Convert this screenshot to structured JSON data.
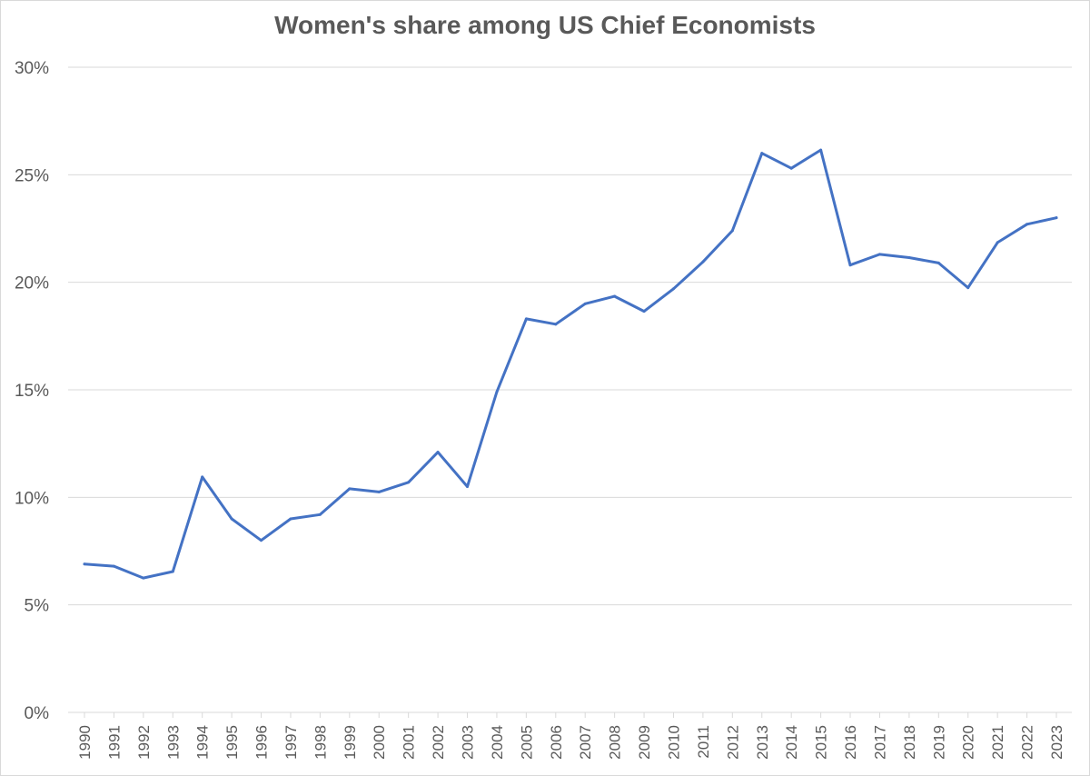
{
  "chart_data": {
    "type": "line",
    "title": "Women's share among US Chief Economists",
    "xlabel": "",
    "ylabel": "",
    "ylim": [
      0,
      30
    ],
    "yticks": [
      "0%",
      "5%",
      "10%",
      "15%",
      "20%",
      "25%",
      "30%"
    ],
    "ytick_values": [
      0,
      5,
      10,
      15,
      20,
      25,
      30
    ],
    "grid": true,
    "legend": "none",
    "categories": [
      "1990",
      "1991",
      "1992",
      "1993",
      "1994",
      "1995",
      "1996",
      "1997",
      "1998",
      "1999",
      "2000",
      "2001",
      "2002",
      "2003",
      "2004",
      "2005",
      "2006",
      "2007",
      "2008",
      "2009",
      "2010",
      "2011",
      "2012",
      "2013",
      "2014",
      "2015",
      "2016",
      "2017",
      "2018",
      "2019",
      "2020",
      "2021",
      "2022",
      "2023"
    ],
    "series": [
      {
        "name": "Women's share",
        "color": "#4472c4",
        "values": [
          6.9,
          6.8,
          6.25,
          6.55,
          10.95,
          9.0,
          8.0,
          9.0,
          9.2,
          10.4,
          10.25,
          10.7,
          12.1,
          10.5,
          14.9,
          18.3,
          18.05,
          19.0,
          19.35,
          18.65,
          19.7,
          20.95,
          22.4,
          26.0,
          25.3,
          26.15,
          20.8,
          21.3,
          21.15,
          20.9,
          19.75,
          21.85,
          22.7,
          23.0
        ]
      }
    ],
    "colors": {
      "grid": "#d9d9d9",
      "axis": "#d9d9d9",
      "text": "#595959"
    }
  }
}
